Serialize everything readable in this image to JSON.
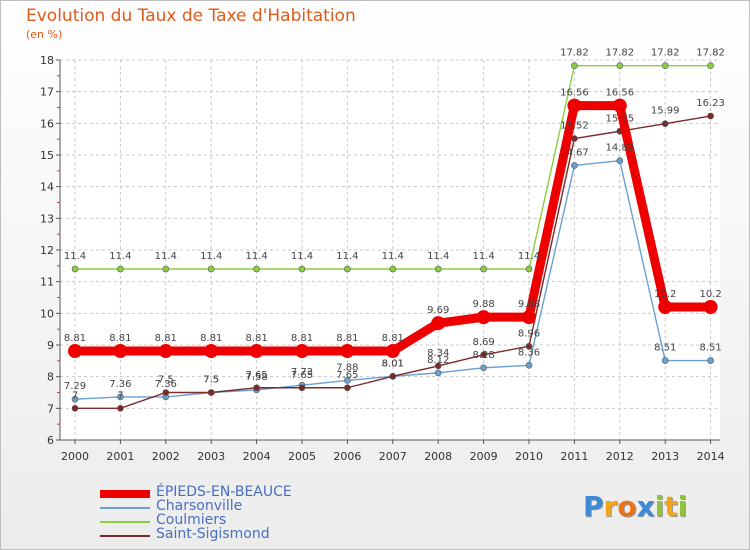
{
  "chart_data": {
    "type": "line",
    "title": "Evolution du Taux de Taxe d'Habitation",
    "unit_label": "(en %)",
    "x": [
      "2000",
      "2001",
      "2002",
      "2003",
      "2004",
      "2005",
      "2006",
      "2007",
      "2008",
      "2009",
      "2010",
      "2011",
      "2012",
      "2013",
      "2014"
    ],
    "ylim": [
      6,
      18
    ],
    "yticks": [
      6,
      7,
      8,
      9,
      10,
      11,
      12,
      13,
      14,
      15,
      16,
      17,
      18
    ],
    "grid": true,
    "legend_position": "bottom-left",
    "series": [
      {
        "name": "ÉPIEDS-EN-BEAUCE",
        "color": "#ee0000",
        "values": [
          8.81,
          8.81,
          8.81,
          8.81,
          8.81,
          8.81,
          8.81,
          8.81,
          9.69,
          9.88,
          9.88,
          16.56,
          16.56,
          10.2,
          10.2
        ]
      },
      {
        "name": "Charsonville",
        "color": "#6aa0d2",
        "values": [
          7.29,
          7.36,
          7.36,
          7.5,
          7.58,
          7.73,
          7.88,
          8.01,
          8.12,
          8.28,
          8.36,
          14.67,
          14.82,
          8.51,
          8.51
        ]
      },
      {
        "name": "Coulmiers",
        "color": "#88d040",
        "values": [
          11.4,
          11.4,
          11.4,
          11.4,
          11.4,
          11.4,
          11.4,
          11.4,
          11.4,
          11.4,
          11.4,
          17.82,
          17.82,
          17.82,
          17.82
        ]
      },
      {
        "name": "Saint-Sigismond",
        "color": "#7a2a2a",
        "values": [
          7,
          7,
          7.5,
          7.5,
          7.65,
          7.65,
          7.65,
          8.01,
          8.34,
          8.69,
          8.96,
          15.52,
          15.75,
          15.99,
          16.23
        ]
      }
    ]
  },
  "logo": {
    "letters": [
      "P",
      "r",
      "o",
      "x",
      "i",
      "t",
      "i"
    ],
    "colors": [
      "#3d8ad6",
      "#f2a51a",
      "#e8741a",
      "#3d8ad6",
      "#8fc43a",
      "#f2a51a",
      "#8fc43a"
    ]
  }
}
